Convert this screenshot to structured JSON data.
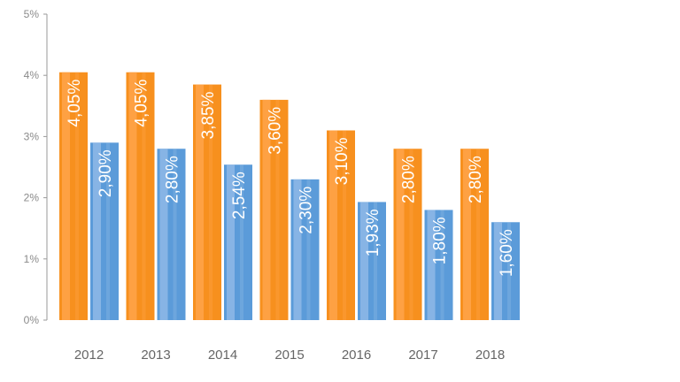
{
  "chart_data": {
    "type": "bar",
    "categories": [
      "2012",
      "2013",
      "2014",
      "2015",
      "2016",
      "2017",
      "2018"
    ],
    "series": [
      {
        "values": [
          4.05,
          4.05,
          3.85,
          3.6,
          3.1,
          2.8,
          2.8
        ],
        "labels": [
          "4,05%",
          "4,05%",
          "3,85%",
          "3,60%",
          "3,10%",
          "2,80%",
          "2,80%"
        ],
        "color": "#f7901e",
        "highlight": "#ffa54a"
      },
      {
        "values": [
          2.9,
          2.8,
          2.54,
          2.3,
          1.93,
          1.8,
          1.6
        ],
        "labels": [
          "2,90%",
          "2,80%",
          "2,54%",
          "2,30%",
          "1,93%",
          "1,80%",
          "1,60%"
        ],
        "color": "#5b9bd9",
        "highlight": "#8fb9e6"
      }
    ],
    "ylim": [
      0,
      5
    ],
    "yticks": [
      {
        "value": 0,
        "label": "0%"
      },
      {
        "value": 1,
        "label": "1%"
      },
      {
        "value": 2,
        "label": "2%"
      },
      {
        "value": 3,
        "label": "3%"
      },
      {
        "value": 4,
        "label": "4%"
      },
      {
        "value": 5,
        "label": "5%"
      }
    ],
    "grid": false,
    "legend": "none"
  }
}
